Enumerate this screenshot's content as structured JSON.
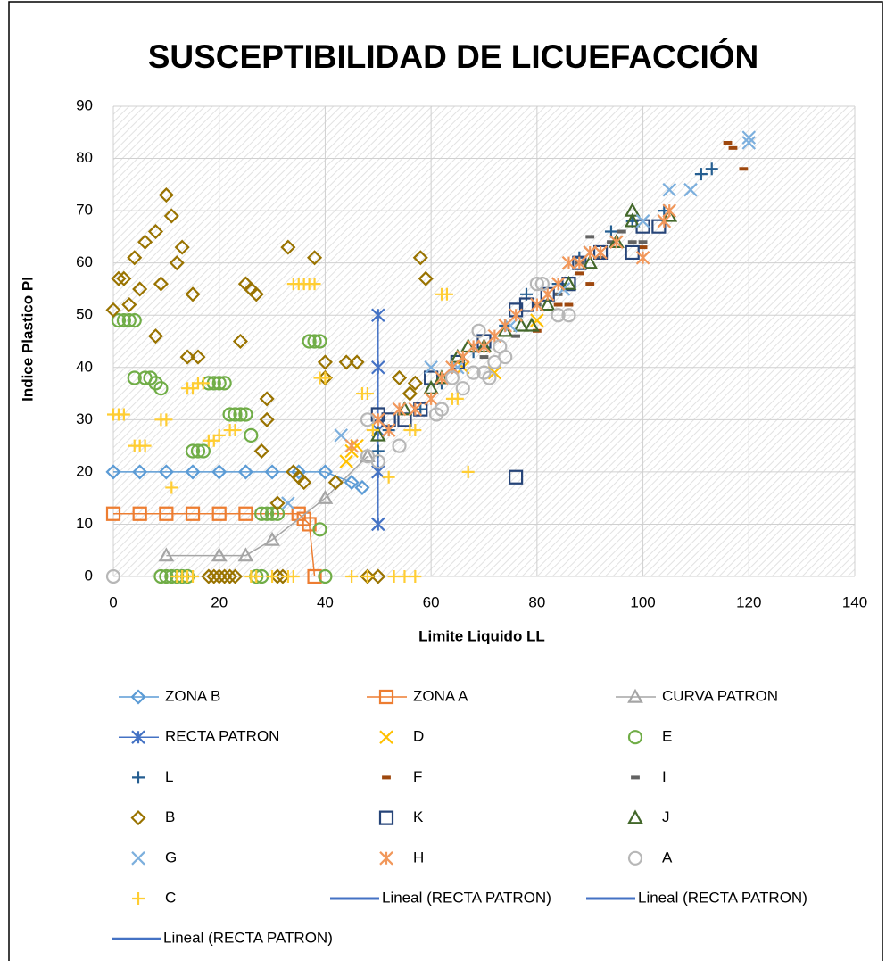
{
  "chart_data": {
    "type": "scatter",
    "title": "SUSCEPTIBILIDAD DE LICUEFACCIÓN",
    "x_label": "Limite Liquido   LL",
    "y_label": "Indice Plastico  PI",
    "xlim": [
      0,
      140
    ],
    "xticks": [
      0,
      20,
      40,
      60,
      80,
      100,
      120,
      140
    ],
    "ylim": [
      0,
      90
    ],
    "yticks": [
      0,
      10,
      20,
      30,
      40,
      50,
      60,
      70,
      80,
      90
    ],
    "grid": true,
    "series": [
      {
        "name": "ZONA B",
        "color": "#5b9bd5",
        "marker": "diamond",
        "line": true,
        "x": [
          0,
          5,
          10,
          15,
          20,
          25,
          30,
          35,
          40,
          45,
          47
        ],
        "values": [
          20,
          20,
          20,
          20,
          20,
          20,
          20,
          20,
          20,
          18,
          17
        ]
      },
      {
        "name": "ZONA A",
        "color": "#ed7d31",
        "marker": "square",
        "line": true,
        "x": [
          0,
          5,
          10,
          15,
          20,
          25,
          35,
          36,
          37,
          38
        ],
        "values": [
          12,
          12,
          12,
          12,
          12,
          12,
          12,
          11,
          10,
          0
        ]
      },
      {
        "name": "CURVA PATRON",
        "color": "#a5a5a5",
        "marker": "triangle",
        "line": true,
        "x": [
          10,
          20,
          25,
          30,
          40,
          48
        ],
        "values": [
          4,
          4,
          4,
          7,
          15,
          23
        ]
      },
      {
        "name": "RECTA PATRON",
        "color": "#4472c4",
        "marker": "asterisk",
        "line": true,
        "x": [
          50,
          50,
          50,
          50,
          50
        ],
        "values": [
          10,
          20,
          28,
          40,
          50
        ]
      },
      {
        "name": "D",
        "color": "#ffc000",
        "marker": "x",
        "x": [
          44,
          45,
          46,
          66,
          72,
          80
        ],
        "values": [
          22,
          24,
          25,
          40,
          39,
          49
        ]
      },
      {
        "name": "E",
        "color": "#70ad47",
        "marker": "circle",
        "x": [
          1,
          2,
          3,
          4,
          4,
          6,
          7,
          8,
          9,
          15,
          16,
          17,
          18,
          19,
          20,
          21,
          22,
          23,
          24,
          25,
          26,
          28,
          29,
          30,
          31,
          37,
          38,
          39,
          39,
          9,
          10,
          11,
          12,
          13,
          14,
          27,
          28,
          40
        ],
        "values": [
          49,
          49,
          49,
          49,
          38,
          38,
          38,
          37,
          36,
          24,
          24,
          24,
          37,
          37,
          37,
          37,
          31,
          31,
          31,
          31,
          27,
          12,
          12,
          12,
          12,
          45,
          45,
          45,
          9,
          0,
          0,
          0,
          0,
          0,
          0,
          0,
          0,
          0
        ]
      },
      {
        "name": "L",
        "color": "#255e91",
        "marker": "plus",
        "x": [
          50,
          52,
          58,
          62,
          68,
          74,
          78,
          84,
          88,
          94,
          98,
          104,
          111,
          113
        ],
        "values": [
          24,
          28,
          32,
          37,
          43,
          48,
          54,
          56,
          61,
          66,
          68,
          70,
          77,
          78
        ]
      },
      {
        "name": "F",
        "color": "#9e480e",
        "marker": "dash",
        "x": [
          80,
          84,
          86,
          88,
          90,
          100,
          116,
          117,
          119
        ],
        "values": [
          47,
          52,
          52,
          58,
          56,
          63,
          83,
          82,
          78
        ]
      },
      {
        "name": "I",
        "color": "#636363",
        "marker": "dash",
        "x": [
          70,
          76,
          80,
          84,
          88,
          90,
          92,
          94,
          96,
          98,
          100
        ],
        "values": [
          42,
          46,
          52,
          54,
          60,
          65,
          61,
          64,
          66,
          64,
          64
        ]
      },
      {
        "name": "B",
        "color": "#997300",
        "marker": "diamond",
        "x": [
          0,
          1,
          2,
          3,
          4,
          5,
          6,
          8,
          10,
          11,
          12,
          13,
          9,
          8,
          14,
          16,
          15,
          24,
          25,
          26,
          27,
          29,
          29,
          28,
          33,
          38,
          40,
          44,
          46,
          40,
          54,
          58,
          59,
          34,
          35,
          36,
          42,
          31,
          18,
          19,
          20,
          21,
          22,
          23,
          31,
          32,
          48,
          50,
          56,
          57
        ],
        "values": [
          51,
          57,
          57,
          52,
          61,
          55,
          64,
          66,
          73,
          69,
          60,
          63,
          56,
          46,
          42,
          42,
          54,
          45,
          56,
          55,
          54,
          34,
          30,
          24,
          63,
          61,
          41,
          41,
          41,
          38,
          38,
          61,
          57,
          20,
          19,
          18,
          18,
          14,
          0,
          0,
          0,
          0,
          0,
          0,
          0,
          0,
          0,
          0,
          35,
          37
        ]
      },
      {
        "name": "K",
        "color": "#264478",
        "marker": "square",
        "x": [
          50,
          52,
          55,
          58,
          60,
          65,
          70,
          76,
          76,
          78,
          82,
          86,
          88,
          92,
          98,
          100,
          103
        ],
        "values": [
          31,
          30,
          30,
          32,
          38,
          41,
          45,
          19,
          51,
          52,
          54,
          56,
          60,
          62,
          62,
          67,
          67
        ]
      },
      {
        "name": "J",
        "color": "#43682b",
        "marker": "triangle",
        "x": [
          50,
          55,
          60,
          62,
          65,
          67,
          70,
          74,
          77,
          79,
          82,
          86,
          90,
          95,
          98,
          98,
          105
        ],
        "values": [
          27,
          32,
          36,
          38,
          42,
          44,
          44,
          47,
          48,
          48,
          52,
          56,
          60,
          64,
          68,
          70,
          69
        ]
      },
      {
        "name": "G",
        "color": "#7cafdd",
        "marker": "x",
        "x": [
          33,
          43,
          60,
          65,
          70,
          75,
          85,
          90,
          100,
          105,
          109,
          120,
          120
        ],
        "values": [
          14,
          27,
          40,
          40,
          44,
          48,
          55,
          62,
          68,
          74,
          74,
          84,
          83
        ]
      },
      {
        "name": "H",
        "color": "#f1975a",
        "marker": "asterisk",
        "x": [
          45,
          50,
          52,
          54,
          57,
          60,
          62,
          64,
          66,
          68,
          70,
          72,
          74,
          76,
          80,
          82,
          84,
          86,
          88,
          90,
          92,
          95,
          100,
          104,
          105
        ],
        "values": [
          25,
          30,
          28,
          32,
          32,
          34,
          38,
          40,
          42,
          44,
          44,
          46,
          48,
          50,
          52,
          54,
          56,
          60,
          60,
          62,
          62,
          64,
          61,
          68,
          70
        ]
      },
      {
        "name": "A",
        "color": "#b7b7b7",
        "marker": "circle",
        "x": [
          0,
          48,
          48,
          50,
          54,
          61,
          62,
          64,
          66,
          68,
          69,
          70,
          71,
          72,
          73,
          74,
          80,
          81,
          84,
          86
        ],
        "values": [
          0,
          30,
          23,
          22,
          25,
          31,
          32,
          38,
          36,
          39,
          47,
          39,
          38,
          41,
          44,
          42,
          56,
          56,
          50,
          50
        ]
      },
      {
        "name": "C",
        "color": "#ffcd33",
        "marker": "plus",
        "x": [
          0,
          1,
          2,
          4,
          5,
          6,
          9,
          10,
          11,
          14,
          15,
          16,
          17,
          18,
          19,
          20,
          22,
          23,
          34,
          35,
          36,
          37,
          38,
          39,
          40,
          47,
          48,
          49,
          52,
          56,
          57,
          62,
          63,
          64,
          65,
          67,
          12,
          13,
          14,
          15,
          26,
          27,
          30,
          33,
          34,
          45,
          48,
          53,
          55,
          57
        ],
        "values": [
          31,
          31,
          31,
          25,
          25,
          25,
          30,
          30,
          17,
          36,
          36,
          37,
          37,
          26,
          26,
          27,
          28,
          28,
          56,
          56,
          56,
          56,
          56,
          38,
          38,
          35,
          35,
          28,
          19,
          28,
          28,
          54,
          54,
          34,
          34,
          20,
          0,
          0,
          0,
          0,
          0,
          0,
          0,
          0,
          0,
          0,
          0,
          0,
          0,
          0
        ]
      }
    ],
    "trendlines": [
      {
        "name": "Lineal (RECTA PATRON)",
        "color": "#4472c4"
      },
      {
        "name": "Lineal (RECTA PATRON)",
        "color": "#4472c4"
      },
      {
        "name": "Lineal (RECTA PATRON)",
        "color": "#4472c4"
      }
    ]
  }
}
